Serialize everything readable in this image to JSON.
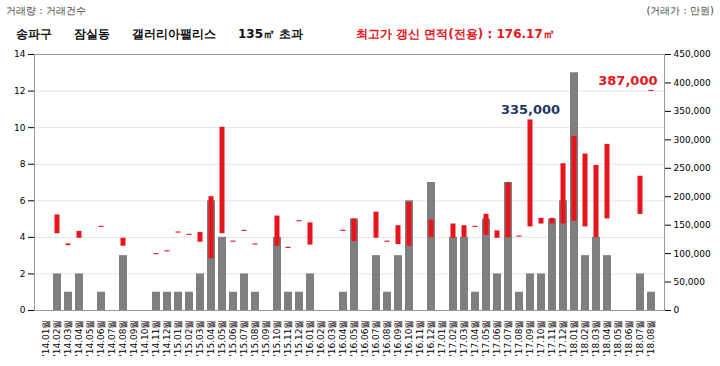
{
  "chart_data": {
    "type": "bar",
    "title": [
      "송파구",
      "잠실동",
      "갤러리아팰리스",
      "135㎡ 초과"
    ],
    "subtitle": "최고가 갱신 면적(전용) : 176.17㎡",
    "y_label": "거래량 : 거래건수",
    "y2_label": "(거래가 : 만원)",
    "categories": [
      "'14.01월",
      "'14.02월",
      "'14.03월",
      "'14.04월",
      "'14.05월",
      "'14.06월",
      "'14.07월",
      "'14.08월",
      "'14.09월",
      "'14.10월",
      "'14.11월",
      "'14.12월",
      "'15.01월",
      "'15.02월",
      "'15.03월",
      "'15.04월",
      "'15.05월",
      "'15.06월",
      "'15.07월",
      "'15.08월",
      "'15.09월",
      "'15.10월",
      "'15.11월",
      "'15.12월",
      "'16.01월",
      "'16.02월",
      "'16.03월",
      "'16.04월",
      "'16.05월",
      "'16.06월",
      "'16.07월",
      "'16.08월",
      "'16.09월",
      "'16.10월",
      "'16.11월",
      "'16.12월",
      "'17.01월",
      "'17.02월",
      "'17.03월",
      "'17.04월",
      "'17.05월",
      "'17.06월",
      "'17.07월",
      "'17.08월",
      "'17.09월",
      "'17.10월",
      "'17.11월",
      "'17.12월",
      "'18.01월",
      "'18.02월",
      "'18.03월",
      "'18.04월",
      "'18.05월",
      "'18.06월",
      "'18.07월",
      "'18.08월"
    ],
    "series": [
      {
        "type": "bar",
        "color": "#7f7f7f",
        "values": [
          0,
          2,
          1,
          2,
          0,
          1,
          0,
          3,
          0,
          0,
          1,
          1,
          1,
          1,
          2,
          6,
          4,
          1,
          2,
          1,
          0,
          4,
          1,
          1,
          2,
          0,
          0,
          1,
          5,
          0,
          3,
          1,
          3,
          6,
          0,
          7,
          0,
          4,
          4,
          1,
          5,
          2,
          7,
          1,
          2,
          2,
          5,
          6,
          13,
          3,
          4,
          3,
          0,
          0,
          2,
          1
        ]
      },
      {
        "type": "range",
        "axis": "y2",
        "color": "#e8141b",
        "low": [
          null,
          135000,
          114000,
          127000,
          null,
          146000,
          null,
          113000,
          null,
          null,
          98000,
          103000,
          136000,
          132000,
          120000,
          91000,
          135000,
          120000,
          139000,
          115000,
          null,
          113000,
          109000,
          156000,
          115000,
          null,
          null,
          139000,
          121000,
          null,
          127000,
          120000,
          116000,
          113000,
          null,
          128000,
          null,
          127000,
          128000,
          146000,
          132000,
          127000,
          128000,
          129000,
          147000,
          152000,
          152000,
          152000,
          157000,
          147000,
          128000,
          161000,
          null,
          null,
          169000,
          385000
        ],
        "high": [
          null,
          168000,
          117000,
          139000,
          null,
          148000,
          null,
          127000,
          null,
          null,
          100000,
          105000,
          138000,
          134000,
          137000,
          200000,
          322000,
          122000,
          141000,
          117000,
          null,
          166000,
          111000,
          158000,
          154000,
          null,
          null,
          141000,
          161000,
          null,
          173000,
          122000,
          149000,
          190000,
          null,
          159000,
          null,
          152000,
          149000,
          148000,
          169000,
          140000,
          224000,
          131000,
          335000,
          162000,
          162000,
          258000,
          306000,
          275000,
          255000,
          292000,
          null,
          null,
          236000,
          387000
        ]
      }
    ],
    "ylim": [
      0,
      14
    ],
    "yticks": [
      0,
      2,
      4,
      6,
      8,
      10,
      12,
      14
    ],
    "y2lim": [
      0,
      450000
    ],
    "y2ticks": [
      0,
      {
        "value": 50000,
        "label": "50,000"
      },
      {
        "value": 100000,
        "label": "100,000"
      },
      {
        "value": 150000,
        "label": "150,000"
      },
      {
        "value": 200000,
        "label": "200,000"
      },
      {
        "value": 250000,
        "label": "250,000"
      },
      {
        "value": 300000,
        "label": "300,000"
      },
      {
        "value": 350000,
        "label": "350,000"
      },
      {
        "value": 400000,
        "label": "400,000"
      },
      {
        "value": 450000,
        "label": "450,000"
      }
    ],
    "annotations": [
      {
        "text": "335,000",
        "category": "'17.09월",
        "value": 335000,
        "color": "#1f3864"
      },
      {
        "text": "387,000",
        "category": "'18.08월",
        "value": 387000,
        "color": "#e8141b"
      }
    ],
    "grid": true
  }
}
